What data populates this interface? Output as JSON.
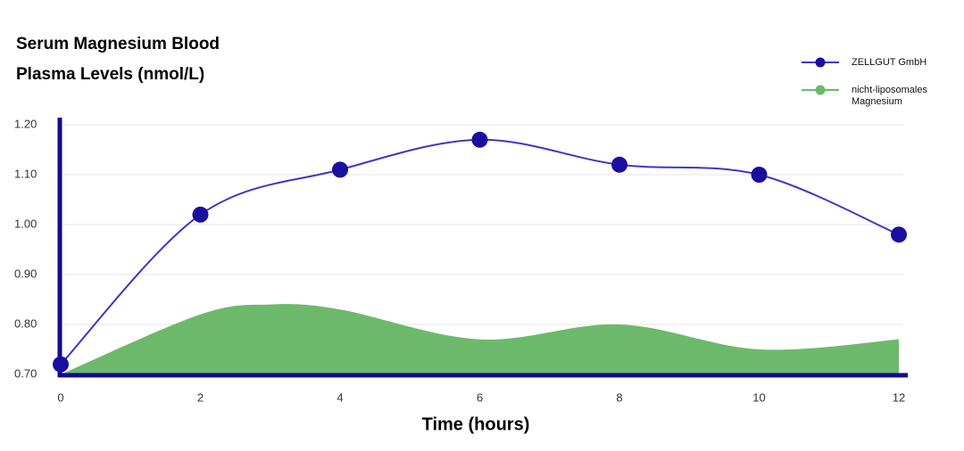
{
  "chart_data": {
    "type": "line_area",
    "title": [
      "Serum Magnesium Blood",
      "Plasma Levels (nmol/L)"
    ],
    "x_label": "Time (hours)",
    "xlim": [
      0,
      12
    ],
    "xticks": [
      0,
      2,
      4,
      6,
      8,
      10,
      12
    ],
    "ylim": [
      0.7,
      1.2
    ],
    "yticks": [
      {
        "value": 0.7,
        "label": "0.70"
      },
      {
        "value": 0.8,
        "label": "0.80"
      },
      {
        "value": 0.9,
        "label": "0.90"
      },
      {
        "value": 1.0,
        "label": "1.00"
      },
      {
        "value": 1.1,
        "label": "1.10"
      },
      {
        "value": 1.2,
        "label": "1.20"
      }
    ],
    "grid": true,
    "series": [
      {
        "name": "ZELLGUT GmbH",
        "color": "#1a0f9e",
        "kind": "line",
        "x": [
          0,
          2,
          4,
          6,
          8,
          10,
          12
        ],
        "values": [
          0.72,
          1.02,
          1.11,
          1.17,
          1.12,
          1.1,
          0.98
        ]
      },
      {
        "name": "nicht-liposomales Magnesium",
        "color": "#6db96b",
        "kind": "area",
        "x": [
          0,
          2,
          3,
          4,
          6,
          8,
          10,
          12
        ],
        "values": [
          0.7,
          0.82,
          0.84,
          0.83,
          0.77,
          0.8,
          0.75,
          0.77
        ]
      }
    ]
  }
}
